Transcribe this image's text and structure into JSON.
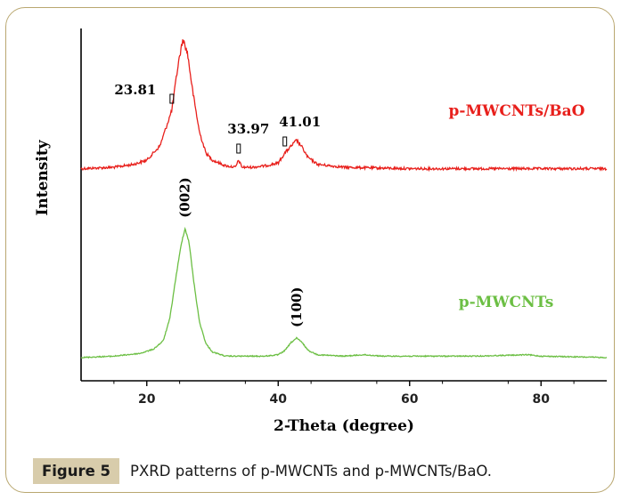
{
  "caption": {
    "label": "Figure 5",
    "text": "PXRD patterns of p-MWCNTs and p-MWCNTs/BaO."
  },
  "chart_data": {
    "type": "line",
    "xlabel": "2-Theta (degree)",
    "ylabel": "Intensity",
    "xlim": [
      10,
      90
    ],
    "xticks": [
      20,
      40,
      60,
      80
    ],
    "y_ticks_shown": false,
    "grid": false,
    "series": [
      {
        "name": "p-MWCNTs/BaO",
        "color": "#e8201c",
        "points": [
          [
            10,
            0.04
          ],
          [
            15,
            0.05
          ],
          [
            18,
            0.07
          ],
          [
            20,
            0.1
          ],
          [
            22,
            0.2
          ],
          [
            23.81,
            0.45
          ],
          [
            24.8,
            0.78
          ],
          [
            25.5,
            0.95
          ],
          [
            26.2,
            0.85
          ],
          [
            27,
            0.58
          ],
          [
            28,
            0.3
          ],
          [
            29,
            0.15
          ],
          [
            30,
            0.1
          ],
          [
            32,
            0.06
          ],
          [
            33.5,
            0.05
          ],
          [
            33.97,
            0.1
          ],
          [
            34.5,
            0.05
          ],
          [
            36,
            0.05
          ],
          [
            38,
            0.06
          ],
          [
            40,
            0.08
          ],
          [
            41.01,
            0.15
          ],
          [
            42,
            0.2
          ],
          [
            42.8,
            0.24
          ],
          [
            43.5,
            0.2
          ],
          [
            44.5,
            0.12
          ],
          [
            46,
            0.07
          ],
          [
            50,
            0.05
          ],
          [
            60,
            0.04
          ],
          [
            70,
            0.04
          ],
          [
            80,
            0.04
          ],
          [
            90,
            0.04
          ]
        ],
        "annotations": [
          {
            "x": 23.81,
            "text": "23.81"
          },
          {
            "x": 33.97,
            "text": "33.97"
          },
          {
            "x": 41.01,
            "text": "41.01"
          }
        ]
      },
      {
        "name": "p-MWCNTs",
        "color": "#6cbf44",
        "points": [
          [
            10,
            0.02
          ],
          [
            15,
            0.03
          ],
          [
            19,
            0.05
          ],
          [
            21,
            0.08
          ],
          [
            22.5,
            0.14
          ],
          [
            23.5,
            0.3
          ],
          [
            24.5,
            0.62
          ],
          [
            25.3,
            0.85
          ],
          [
            25.8,
            0.95
          ],
          [
            26.4,
            0.86
          ],
          [
            27.2,
            0.55
          ],
          [
            28,
            0.28
          ],
          [
            29,
            0.12
          ],
          [
            30,
            0.06
          ],
          [
            32,
            0.03
          ],
          [
            38,
            0.03
          ],
          [
            40,
            0.04
          ],
          [
            41,
            0.07
          ],
          [
            42,
            0.13
          ],
          [
            42.8,
            0.16
          ],
          [
            43.6,
            0.13
          ],
          [
            44.6,
            0.07
          ],
          [
            46,
            0.04
          ],
          [
            50,
            0.03
          ],
          [
            53,
            0.04
          ],
          [
            56,
            0.03
          ],
          [
            70,
            0.03
          ],
          [
            78,
            0.04
          ],
          [
            80,
            0.03
          ],
          [
            90,
            0.02
          ]
        ],
        "annotations": [
          {
            "x": 25.8,
            "text": "(002)"
          },
          {
            "x": 42.8,
            "text": "(100)"
          }
        ]
      }
    ]
  }
}
